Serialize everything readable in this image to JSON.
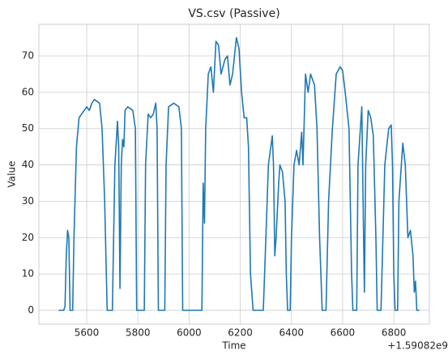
{
  "chart_data": {
    "type": "line",
    "title": "VS.csv (Passive)",
    "x_label": "Time",
    "y_label": "Value",
    "x_offset_label": "+1.59082e9",
    "x": [
      5490,
      5510,
      5515,
      5520,
      5525,
      5530,
      5535,
      5545,
      5550,
      5560,
      5570,
      5580,
      5590,
      5600,
      5610,
      5620,
      5630,
      5650,
      5660,
      5670,
      5680,
      5700,
      5710,
      5720,
      5725,
      5730,
      5735,
      5740,
      5745,
      5750,
      5760,
      5780,
      5790,
      5795,
      5825,
      5830,
      5840,
      5850,
      5860,
      5870,
      5875,
      5880,
      5905,
      5910,
      5920,
      5940,
      5960,
      5970,
      5975,
      6050,
      6055,
      6060,
      6065,
      6075,
      6085,
      6095,
      6105,
      6115,
      6125,
      6140,
      6150,
      6160,
      6170,
      6185,
      6195,
      6205,
      6215,
      6225,
      6232,
      6240,
      6250,
      6290,
      6300,
      6310,
      6325,
      6330,
      6335,
      6340,
      6350,
      6355,
      6365,
      6375,
      6380,
      6385,
      6395,
      6400,
      6410,
      6420,
      6430,
      6440,
      6445,
      6455,
      6465,
      6475,
      6490,
      6500,
      6510,
      6520,
      6535,
      6545,
      6560,
      6575,
      6590,
      6600,
      6610,
      6625,
      6635,
      6640,
      6655,
      6660,
      6675,
      6680,
      6685,
      6690,
      6700,
      6710,
      6720,
      6730,
      6735,
      6750,
      6765,
      6780,
      6790,
      6795,
      6800,
      6805,
      6815,
      6820,
      6835,
      6845,
      6855,
      6865,
      6875,
      6880,
      6885,
      6890,
      6900
    ],
    "series": [
      {
        "name": "Value",
        "color": "#1f77b4",
        "values": [
          0,
          0,
          1,
          15,
          22,
          20,
          0,
          0,
          20,
          45,
          53,
          54,
          55,
          56,
          55,
          57,
          58,
          57,
          50,
          30,
          0,
          0,
          40,
          52,
          45,
          6,
          40,
          47,
          45,
          55,
          56,
          55,
          50,
          0,
          0,
          40,
          54,
          53,
          54,
          57,
          50,
          0,
          0,
          40,
          56,
          57,
          56,
          50,
          0,
          0,
          35,
          24,
          50,
          65,
          67,
          60,
          74,
          73,
          65,
          69,
          70,
          62,
          65,
          75,
          72,
          60,
          53,
          53,
          45,
          10,
          0,
          0,
          20,
          40,
          48,
          40,
          15,
          20,
          35,
          40,
          38,
          30,
          10,
          0,
          0,
          20,
          40,
          44,
          40,
          49,
          40,
          65,
          60,
          65,
          62,
          50,
          20,
          0,
          0,
          30,
          50,
          65,
          67,
          66,
          60,
          50,
          10,
          0,
          0,
          40,
          56,
          30,
          5,
          40,
          55,
          53,
          48,
          20,
          0,
          0,
          40,
          50,
          51,
          40,
          10,
          0,
          0,
          30,
          46,
          40,
          20,
          22,
          15,
          5,
          8,
          0,
          0
        ]
      }
    ],
    "xlim": [
      5413,
      6939
    ],
    "ylim": [
      -3.8,
      78.7
    ],
    "xticks": [
      5600,
      5800,
      6000,
      6200,
      6400,
      6600,
      6800
    ],
    "yticks": [
      0,
      10,
      20,
      30,
      40,
      50,
      60,
      70
    ],
    "grid": true
  }
}
